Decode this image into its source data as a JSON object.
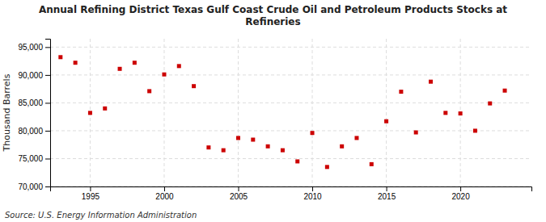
{
  "chart_data": {
    "type": "scatter",
    "title": "Annual Refining District Texas Gulf Coast Crude Oil and Petroleum Products Stocks at\nRefineries",
    "y_label": "Thousand Barrels",
    "source": "Source: U.S. Energy Information Administration",
    "x": [
      1993,
      1994,
      1995,
      1996,
      1997,
      1998,
      1999,
      2000,
      2001,
      2002,
      2003,
      2004,
      2005,
      2006,
      2007,
      2008,
      2009,
      2010,
      2011,
      2012,
      2013,
      2014,
      2015,
      2016,
      2017,
      2018,
      2019,
      2020,
      2021,
      2022,
      2023
    ],
    "values": [
      93200,
      92200,
      83200,
      84000,
      91100,
      92200,
      87100,
      90100,
      91600,
      88000,
      77000,
      76500,
      78700,
      78400,
      77200,
      76500,
      74500,
      79600,
      73500,
      77200,
      78700,
      74000,
      81700,
      87000,
      79700,
      88800,
      83200,
      83100,
      80000,
      84900,
      87200
    ],
    "color": "#cc0000",
    "marker": "square",
    "xlim": [
      1992.3,
      2024.8
    ],
    "xticks": [
      1995,
      2000,
      2005,
      2010,
      2015,
      2020
    ],
    "ylim": [
      70000,
      96500
    ],
    "yticks": [
      {
        "value": 70000,
        "label": "70,000"
      },
      {
        "value": 75000,
        "label": "75,000"
      },
      {
        "value": 80000,
        "label": "80,000"
      },
      {
        "value": 85000,
        "label": "85,000"
      },
      {
        "value": 90000,
        "label": "90,000"
      },
      {
        "value": 95000,
        "label": "95,000"
      }
    ],
    "grid": true
  }
}
